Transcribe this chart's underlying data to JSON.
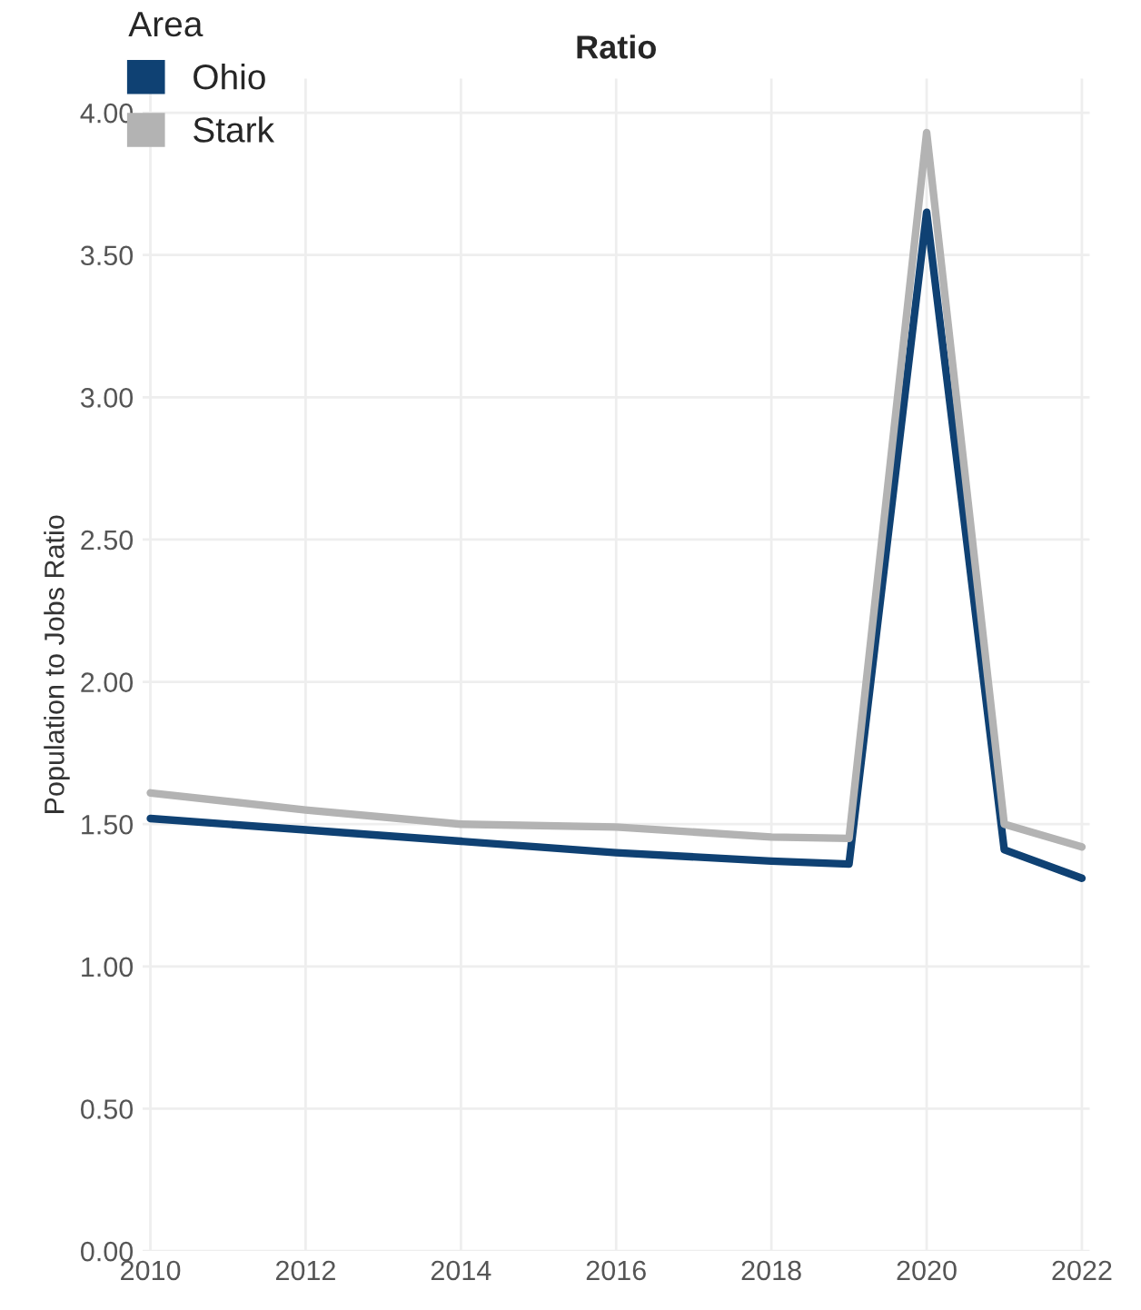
{
  "chart_data": {
    "type": "line",
    "title": "Ratio",
    "ylabel": "Population to Jobs Ratio",
    "legend_title": "Area",
    "x": [
      2010,
      2012,
      2014,
      2016,
      2018,
      2019,
      2020,
      2021,
      2022
    ],
    "series": [
      {
        "name": "Ohio",
        "color": "#0f4173",
        "values": [
          1.52,
          1.48,
          1.44,
          1.4,
          1.37,
          1.36,
          3.65,
          1.41,
          1.31
        ]
      },
      {
        "name": "Stark",
        "color": "#b3b3b3",
        "values": [
          1.61,
          1.55,
          1.5,
          1.49,
          1.455,
          1.45,
          3.93,
          1.5,
          1.42
        ]
      }
    ],
    "xlim": [
      2009.9,
      2022.1
    ],
    "xticks": [
      2010,
      2012,
      2014,
      2016,
      2018,
      2020,
      2022
    ],
    "ylim": [
      0,
      4.12
    ],
    "yticks": [
      {
        "value": 0,
        "label": "0.00"
      },
      {
        "value": 0.5,
        "label": "0.50"
      },
      {
        "value": 1,
        "label": "1.00"
      },
      {
        "value": 1.5,
        "label": "1.50"
      },
      {
        "value": 2,
        "label": "2.00"
      },
      {
        "value": 2.5,
        "label": "2.50"
      },
      {
        "value": 3,
        "label": "3.00"
      },
      {
        "value": 3.5,
        "label": "3.50"
      },
      {
        "value": 4,
        "label": "4.00"
      }
    ],
    "grid": true,
    "legend": "top left",
    "line_style": "solid"
  }
}
